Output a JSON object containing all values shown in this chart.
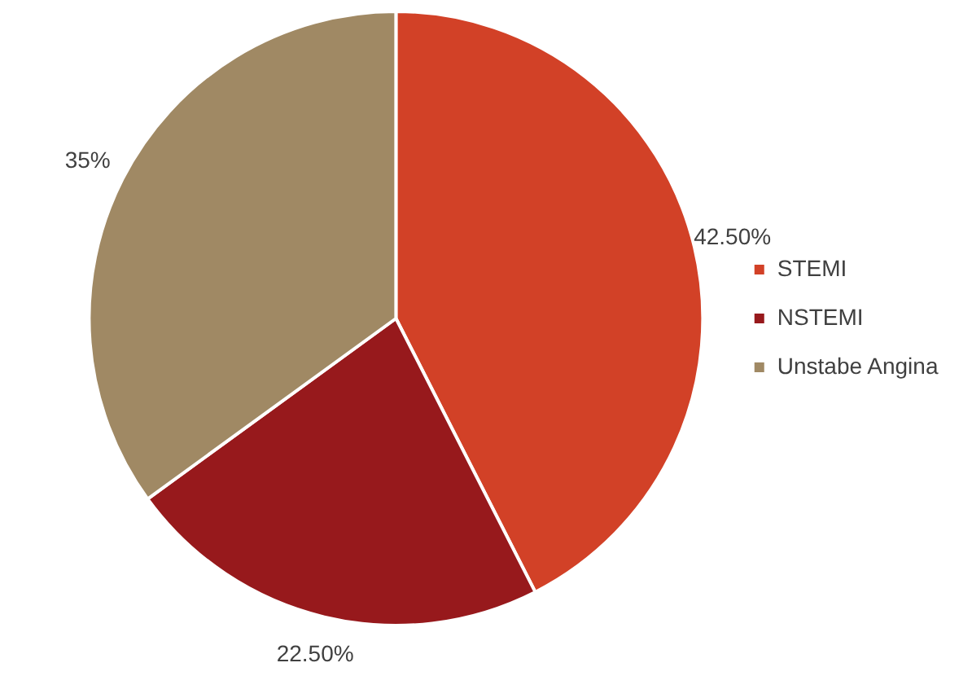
{
  "chart_data": {
    "type": "pie",
    "categories": [
      "STEMI",
      "NSTEMI",
      "Unstabe Angina"
    ],
    "values": [
      42.5,
      22.5,
      35
    ],
    "colors": [
      "#d24127",
      "#97191c",
      "#a08964"
    ],
    "value_labels": [
      "42.50%",
      "22.50%",
      "35%"
    ],
    "legend": "right"
  }
}
